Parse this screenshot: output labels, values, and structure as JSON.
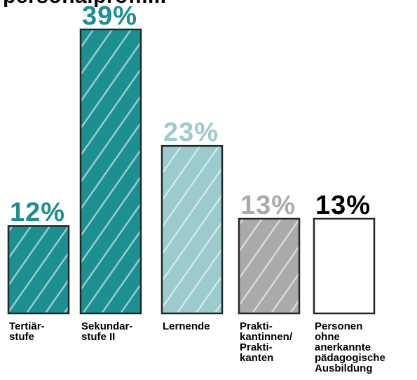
{
  "chart_data": {
    "type": "bar",
    "title": "personalprofil...",
    "categories": [
      "Tertiär-\nstufe",
      "Sekundar-\nstufe II",
      "Lernende",
      "Prakti-\nkantinnen/\nPrakti-\nkanten",
      "Personen\nohne\nanerkannte\npädagogische\nAusbildung"
    ],
    "values": [
      12,
      39,
      23,
      13,
      13
    ],
    "value_labels": [
      "12%",
      "39%",
      "23%",
      "13%",
      "13%"
    ],
    "unit": "%",
    "ylim": [
      0,
      39
    ],
    "grid": false,
    "legend": "none",
    "colors": {
      "bar_fills": [
        "#1b8f91",
        "#1b8f91",
        "#9ccbcd",
        "#aaaaaa",
        "#ffffff"
      ],
      "label_colors": [
        "#1b8f91",
        "#1b8f91",
        "#9ccbcd",
        "#aaaaaa",
        "#000000"
      ],
      "outline": "#1f2b2b",
      "hatch": "#ffffff"
    }
  }
}
